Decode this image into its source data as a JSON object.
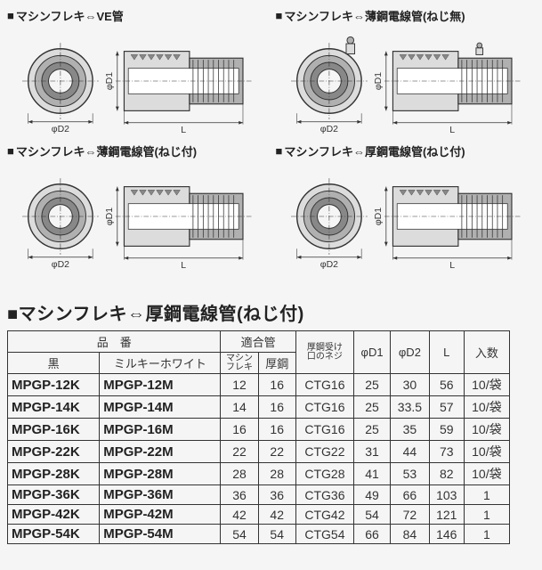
{
  "diagrams": [
    {
      "label": "マシンフレキ⇔VE管"
    },
    {
      "label": "マシンフレキ⇔薄鋼電線管(ねじ無)"
    },
    {
      "label": "マシンフレキ⇔薄鋼電線管(ねじ付)"
    },
    {
      "label": "マシンフレキ⇔厚鋼電線管(ねじ付)"
    }
  ],
  "dim_labels": {
    "d1": "φD1",
    "d2": "φD2",
    "L": "L"
  },
  "table_title": "■マシンフレキ⇔厚鋼電線管(ねじ付)",
  "headers": {
    "hinban": "品　番",
    "black": "黒",
    "milky": "ミルキーホワイト",
    "fit_pipe": "適合管",
    "mflex": "マシン\nフレキ",
    "thick": "厚鋼",
    "thread": "厚鋼受け\n口のネジ",
    "d1": "φD1",
    "d2": "φD2",
    "L": "L",
    "qty": "入数"
  },
  "rows": [
    {
      "k": "MPGP-12K",
      "m": "MPGP-12M",
      "mf": "12",
      "th": "16",
      "thr": "CTG16",
      "d1": "25",
      "d2": "30",
      "L": "56",
      "q": "10/袋"
    },
    {
      "k": "MPGP-14K",
      "m": "MPGP-14M",
      "mf": "14",
      "th": "16",
      "thr": "CTG16",
      "d1": "25",
      "d2": "33.5",
      "L": "57",
      "q": "10/袋"
    },
    {
      "k": "MPGP-16K",
      "m": "MPGP-16M",
      "mf": "16",
      "th": "16",
      "thr": "CTG16",
      "d1": "25",
      "d2": "35",
      "L": "59",
      "q": "10/袋"
    },
    {
      "k": "MPGP-22K",
      "m": "MPGP-22M",
      "mf": "22",
      "th": "22",
      "thr": "CTG22",
      "d1": "31",
      "d2": "44",
      "L": "73",
      "q": "10/袋"
    },
    {
      "k": "MPGP-28K",
      "m": "MPGP-28M",
      "mf": "28",
      "th": "28",
      "thr": "CTG28",
      "d1": "41",
      "d2": "53",
      "L": "82",
      "q": "10/袋"
    },
    {
      "k": "MPGP-36K",
      "m": "MPGP-36M",
      "mf": "36",
      "th": "36",
      "thr": "CTG36",
      "d1": "49",
      "d2": "66",
      "L": "103",
      "q": "1"
    },
    {
      "k": "MPGP-42K",
      "m": "MPGP-42M",
      "mf": "42",
      "th": "42",
      "thr": "CTG42",
      "d1": "54",
      "d2": "72",
      "L": "121",
      "q": "1"
    },
    {
      "k": "MPGP-54K",
      "m": "MPGP-54M",
      "mf": "54",
      "th": "54",
      "thr": "CTG54",
      "d1": "66",
      "d2": "84",
      "L": "146",
      "q": "1"
    }
  ],
  "colors": {
    "stroke": "#333333",
    "fill_light": "#dcdcdc",
    "fill_mid": "#b0b0b0",
    "fill_dark": "#888888",
    "bg": "#f5f5f5"
  }
}
